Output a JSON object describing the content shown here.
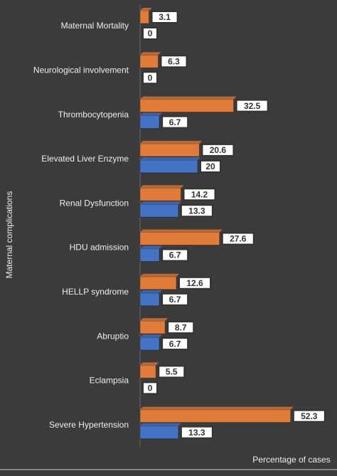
{
  "chart_data": {
    "type": "hbar",
    "y_label": "Maternal complications",
    "x_label": "Percentage of cases",
    "categories": [
      "Maternal Mortality",
      "Neurological involvement",
      "Thrombocytopenia",
      "Elevated Liver Enzyme",
      "Renal Dysfunction",
      "HDU admission",
      "HELLP syndrome",
      "Abruptio",
      "Eclampsia",
      "Severe Hypertension"
    ],
    "series": [
      {
        "color": "#e07b39",
        "values": [
          3.1,
          6.3,
          32.5,
          20.6,
          14.2,
          27.6,
          12.6,
          8.7,
          5.5,
          52.3
        ]
      },
      {
        "color": "#4472c4",
        "values": [
          0,
          0,
          6.7,
          20,
          13.3,
          6.7,
          6.7,
          6.7,
          0,
          13.3
        ]
      }
    ],
    "xlim": [
      0,
      60
    ]
  }
}
